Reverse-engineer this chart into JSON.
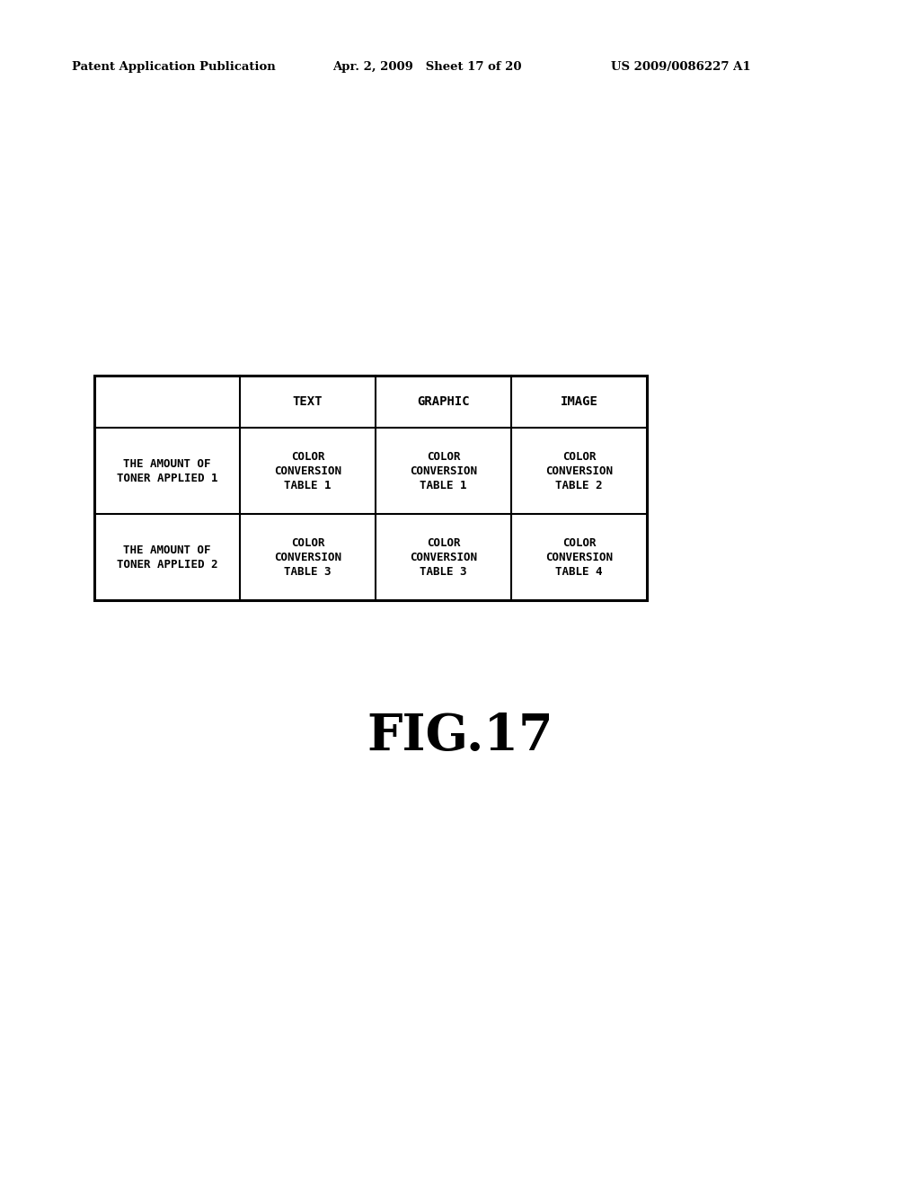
{
  "background_color": "#ffffff",
  "header_left": "Patent Application Publication",
  "header_mid": "Apr. 2, 2009   Sheet 17 of 20",
  "header_right": "US 2009/0086227 A1",
  "fig_label": "FIG.17",
  "table": {
    "col_headers": [
      "",
      "TEXT",
      "GRAPHIC",
      "IMAGE"
    ],
    "rows": [
      {
        "row_header": "THE AMOUNT OF\nTONER APPLIED 1",
        "cells": [
          "COLOR\nCONVERSION\nTABLE 1",
          "COLOR\nCONVERSION\nTABLE 1",
          "COLOR\nCONVERSION\nTABLE 2"
        ]
      },
      {
        "row_header": "THE AMOUNT OF\nTONER APPLIED 2",
        "cells": [
          "COLOR\nCONVERSION\nTABLE 3",
          "COLOR\nCONVERSION\nTABLE 3",
          "COLOR\nCONVERSION\nTABLE 4"
        ]
      }
    ]
  },
  "text_color": "#000000",
  "line_color": "#000000",
  "header_fontsize": 9.5,
  "table_header_fontsize": 10,
  "table_cell_fontsize": 9,
  "figlabel_fontsize": 40
}
